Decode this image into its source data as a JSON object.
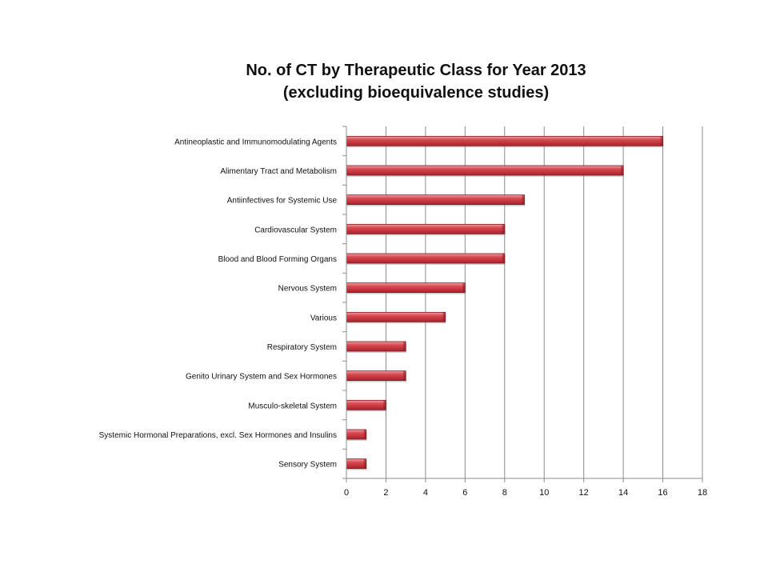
{
  "chart_data": {
    "type": "bar",
    "orientation": "horizontal",
    "title": "No. of CT by Therapeutic Class for Year 2013",
    "subtitle": "(excluding bioequivalence studies)",
    "xlabel": "",
    "ylabel": "",
    "xlim": [
      0,
      18
    ],
    "x_ticks": [
      0,
      2,
      4,
      6,
      8,
      10,
      12,
      14,
      16,
      18
    ],
    "grid": "vertical",
    "legend": "none",
    "bar_color": "#c8333c",
    "categories": [
      "Antineoplastic and Immunomodulating Agents",
      "Alimentary Tract and Metabolism",
      "Antiinfectives for Systemic Use",
      "Cardiovascular System",
      "Blood and Blood Forming Organs",
      "Nervous System",
      "Various",
      "Respiratory System",
      "Genito Urinary System and Sex Hormones",
      "Musculo-skeletal System",
      "Systemic Hormonal Preparations, excl. Sex Hormones and Insulins",
      "Sensory System"
    ],
    "values": [
      16,
      14,
      9,
      8,
      8,
      6,
      5,
      3,
      3,
      2,
      1,
      1
    ]
  }
}
